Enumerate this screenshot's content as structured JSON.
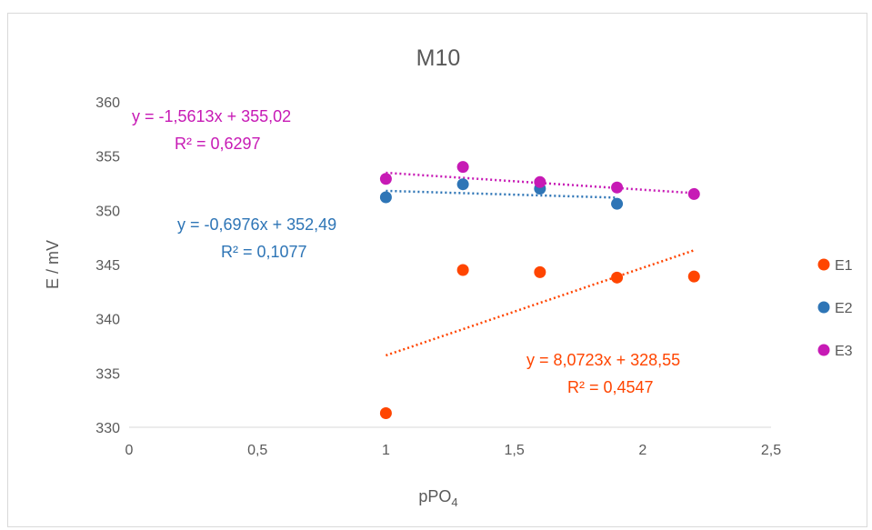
{
  "chart_data": {
    "type": "scatter",
    "title": "M10",
    "xlabel_main": "pPO",
    "xlabel_sub": "4",
    "ylabel": "E / mV",
    "xlim": [
      0,
      2.5
    ],
    "ylim": [
      330,
      360
    ],
    "x_ticks": [
      0,
      0.5,
      1,
      1.5,
      2,
      2.5
    ],
    "x_tick_labels": [
      "0",
      "0,5",
      "1",
      "1,5",
      "2",
      "2,5"
    ],
    "y_ticks": [
      330,
      335,
      340,
      345,
      350,
      355,
      360
    ],
    "y_tick_labels": [
      "330",
      "335",
      "340",
      "345",
      "350",
      "355",
      "360"
    ],
    "grid": false,
    "legend_position": "right",
    "series": [
      {
        "name": "E1",
        "color": "#ff4500",
        "x": [
          1,
          1.3,
          1.6,
          1.9,
          2.2
        ],
        "y": [
          331.3,
          344.5,
          344.3,
          343.8,
          343.9
        ],
        "trendline": {
          "slope": 8.0723,
          "intercept": 328.55,
          "x_range": [
            1,
            2.2
          ]
        },
        "equation": "y = 8,0723x + 328,55",
        "r2": "R² = 0,4547"
      },
      {
        "name": "E2",
        "color": "#2e75b6",
        "x": [
          1,
          1.3,
          1.6,
          1.9
        ],
        "y": [
          351.2,
          352.4,
          352.0,
          350.6
        ],
        "trendline": {
          "slope": -0.6976,
          "intercept": 352.49,
          "x_range": [
            1,
            1.9
          ]
        },
        "equation": "y = -0,6976x + 352,49",
        "r2": "R² = 0,1077"
      },
      {
        "name": "E3",
        "color": "#c71ab5",
        "x": [
          1,
          1.3,
          1.6,
          1.9,
          2.2
        ],
        "y": [
          352.9,
          354.0,
          352.6,
          352.1,
          351.5
        ],
        "trendline": {
          "slope": -1.5613,
          "intercept": 355.02,
          "x_range": [
            1,
            2.2
          ]
        },
        "equation": "y = -1,5613x + 355,02",
        "r2": "R² = 0,6297"
      }
    ]
  }
}
